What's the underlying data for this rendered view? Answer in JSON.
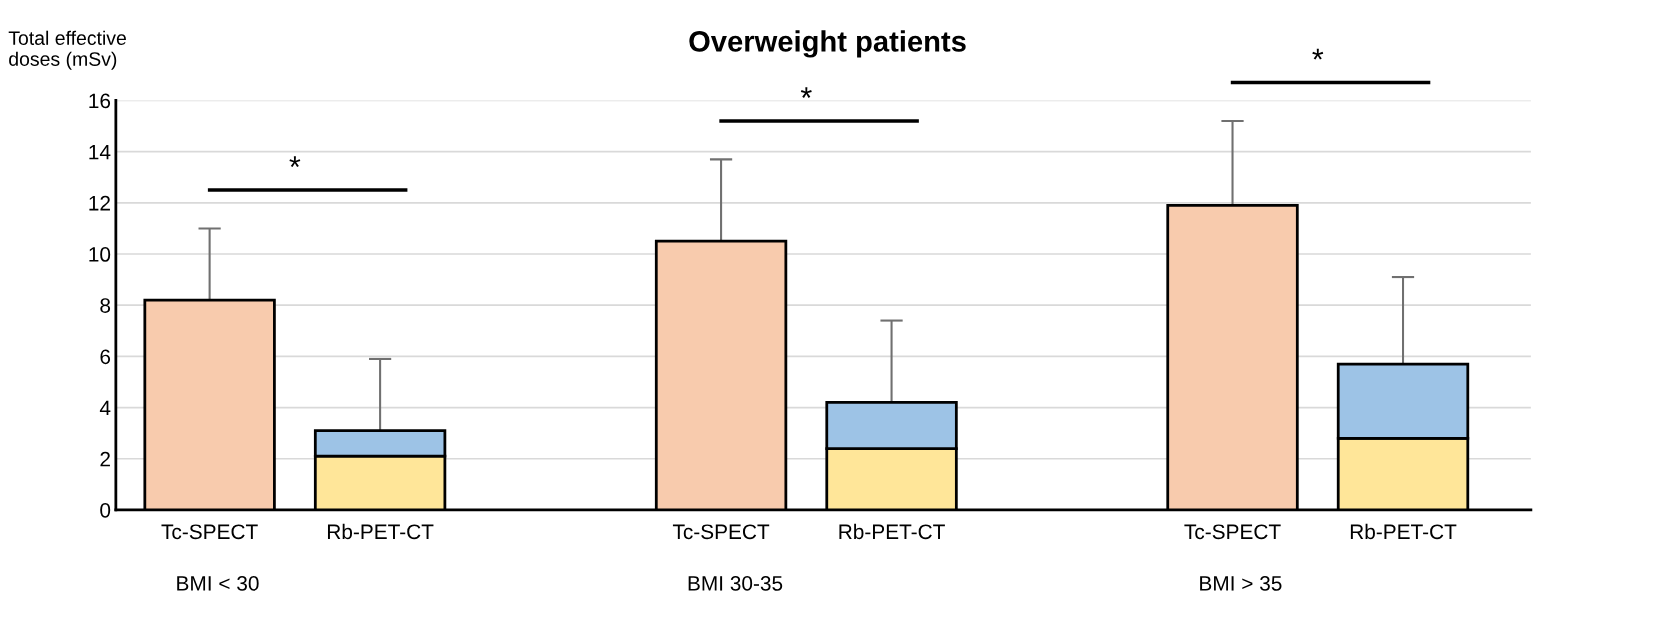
{
  "chart_data": {
    "type": "bar",
    "title": "Overweight patients",
    "ylabel": "Total effective doses (mSv)",
    "categories": [
      "Tc-SPECT",
      "Rb-PET-CT",
      null,
      "Tc-SPECT",
      "Rb-PET-CT",
      null,
      "Tc-SPECT",
      "Rb-PET-CT"
    ],
    "stacked": true,
    "series": [
      {
        "color": "#f8cbad",
        "values": [
          8.2,
          null,
          null,
          10.5,
          null,
          null,
          11.9,
          null
        ],
        "errors": [
          2.8,
          null,
          null,
          3.2,
          null,
          null,
          3.3,
          null
        ]
      },
      {
        "color": "#ffe699",
        "values": [
          null,
          2.1,
          null,
          null,
          2.4,
          null,
          null,
          2.8
        ]
      },
      {
        "color": "#9dc3e6",
        "values": [
          null,
          1.0,
          null,
          null,
          1.8,
          null,
          null,
          2.9
        ],
        "errors": [
          null,
          2.8,
          null,
          null,
          3.2,
          null,
          null,
          3.4
        ]
      }
    ],
    "ylim": [
      0,
      16
    ],
    "yticks": [
      0,
      2,
      4,
      6,
      8,
      10,
      12,
      14,
      16
    ],
    "grid": "y",
    "annotations": [
      "*",
      "BMI < 30",
      "*",
      "BMI 30-35",
      "*",
      "BMI > 35"
    ]
  }
}
